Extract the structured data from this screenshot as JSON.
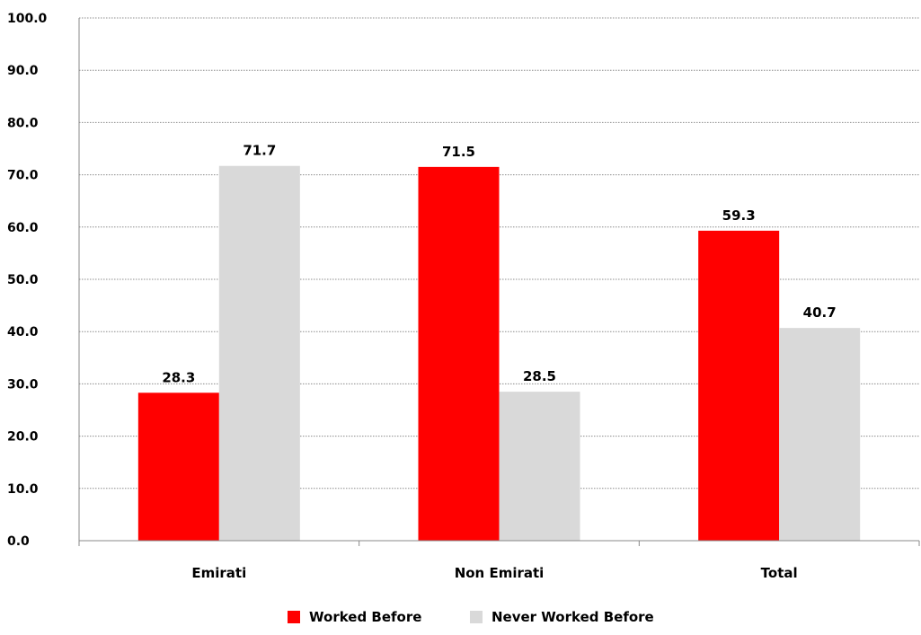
{
  "chart_data": {
    "type": "bar",
    "categories": [
      "Emirati",
      "Non Emirati",
      "Total"
    ],
    "series": [
      {
        "name": "Worked Before",
        "values": [
          28.3,
          71.5,
          59.3
        ],
        "color": "#ff0000"
      },
      {
        "name": "Never Worked Before",
        "values": [
          71.7,
          28.5,
          40.7
        ],
        "color": "#d9d9d9"
      }
    ],
    "ylim": [
      0,
      100
    ],
    "ytick_labels": [
      "0.0",
      "10.0",
      "20.0",
      "30.0",
      "40.0",
      "50.0",
      "60.0",
      "70.0",
      "80.0",
      "90.0",
      "100.0"
    ],
    "data_labels": [
      [
        "28.3",
        "71.5",
        "59.3"
      ],
      [
        "71.7",
        "28.5",
        "40.7"
      ]
    ],
    "title": "",
    "xlabel": "",
    "ylabel": "",
    "grid": true,
    "grid_style": "dotted",
    "legend_position": "bottom-center"
  }
}
